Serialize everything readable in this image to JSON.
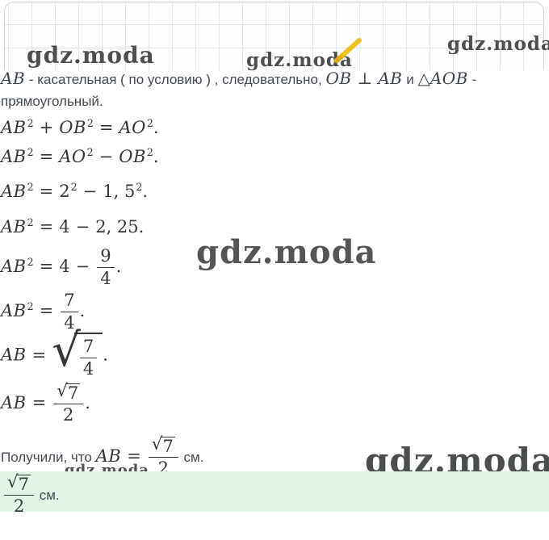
{
  "watermark_text": "gdz.moda",
  "colors": {
    "highlight_green": "#e1f4e6",
    "pencil_yellow": "#eec11d",
    "grid_line": "#e3e6e9",
    "russian_text": "#454b52",
    "math_text": "#33373b"
  },
  "intro": {
    "line1": [
      {
        "t": "v",
        "v": "AB"
      },
      {
        "t": "r",
        "v": " - касательная ( по условию ) , следовательно, "
      },
      {
        "t": "v",
        "v": "OB"
      },
      {
        "t": "o",
        "v": "⊥"
      },
      {
        "t": "v",
        "v": "AB"
      },
      {
        "t": "r",
        "v": " и "
      },
      {
        "t": "n",
        "v": "△"
      },
      {
        "t": "v",
        "v": "AOB"
      },
      {
        "t": "r",
        "v": " -"
      }
    ],
    "line2": "прямоугольный."
  },
  "formulas": [
    {
      "name": "pythagorean",
      "tokens": [
        {
          "t": "v",
          "v": "AB"
        },
        {
          "t": "s",
          "v": "2"
        },
        {
          "t": "o",
          "v": "+"
        },
        {
          "t": "v",
          "v": "OB"
        },
        {
          "t": "s",
          "v": "2"
        },
        {
          "t": "o",
          "v": "="
        },
        {
          "t": "v",
          "v": "AO"
        },
        {
          "t": "s",
          "v": "2"
        },
        {
          "t": "d",
          "v": "."
        }
      ]
    },
    {
      "name": "rearranged",
      "tokens": [
        {
          "t": "v",
          "v": "AB"
        },
        {
          "t": "s",
          "v": "2"
        },
        {
          "t": "o",
          "v": "="
        },
        {
          "t": "v",
          "v": "AO"
        },
        {
          "t": "s",
          "v": "2"
        },
        {
          "t": "o",
          "v": "−"
        },
        {
          "t": "v",
          "v": "OB"
        },
        {
          "t": "s",
          "v": "2"
        },
        {
          "t": "d",
          "v": "."
        }
      ]
    },
    {
      "name": "substituted",
      "tokens": [
        {
          "t": "v",
          "v": "AB"
        },
        {
          "t": "s",
          "v": "2"
        },
        {
          "t": "o",
          "v": "="
        },
        {
          "t": "n",
          "v": "2"
        },
        {
          "t": "s",
          "v": "2"
        },
        {
          "t": "o",
          "v": "−"
        },
        {
          "t": "n",
          "v": "1, 5"
        },
        {
          "t": "s",
          "v": "2"
        },
        {
          "t": "d",
          "v": "."
        }
      ]
    },
    {
      "name": "decimal",
      "tokens": [
        {
          "t": "v",
          "v": "AB"
        },
        {
          "t": "s",
          "v": "2"
        },
        {
          "t": "o",
          "v": "="
        },
        {
          "t": "n",
          "v": "4"
        },
        {
          "t": "o",
          "v": "−"
        },
        {
          "t": "n",
          "v": "2, 25"
        },
        {
          "t": "d",
          "v": "."
        }
      ]
    },
    {
      "name": "fraction-subtract",
      "tokens": [
        {
          "t": "v",
          "v": "AB"
        },
        {
          "t": "s",
          "v": "2"
        },
        {
          "t": "o",
          "v": "="
        },
        {
          "t": "n",
          "v": "4"
        },
        {
          "t": "o",
          "v": "−"
        },
        {
          "t": "f",
          "num": [
            {
              "t": "n",
              "v": "9"
            }
          ],
          "den": [
            {
              "t": "n",
              "v": "4"
            }
          ]
        },
        {
          "t": "d",
          "v": "."
        }
      ]
    },
    {
      "name": "fraction-result",
      "tokens": [
        {
          "t": "v",
          "v": "AB"
        },
        {
          "t": "s",
          "v": "2"
        },
        {
          "t": "o",
          "v": "="
        },
        {
          "t": "f",
          "num": [
            {
              "t": "n",
              "v": "7"
            }
          ],
          "den": [
            {
              "t": "n",
              "v": "4"
            }
          ]
        },
        {
          "t": "d",
          "v": "."
        }
      ]
    },
    {
      "name": "sqrt-of-fraction",
      "tokens": [
        {
          "t": "v",
          "v": "AB"
        },
        {
          "t": "o",
          "v": "="
        },
        {
          "t": "q",
          "size": "lg",
          "c": [
            {
              "t": "f",
              "num": [
                {
                  "t": "n",
                  "v": "7"
                }
              ],
              "den": [
                {
                  "t": "n",
                  "v": "4"
                }
              ]
            }
          ]
        },
        {
          "t": "d",
          "v": "."
        }
      ]
    },
    {
      "name": "simplified",
      "tokens": [
        {
          "t": "v",
          "v": "AB"
        },
        {
          "t": "o",
          "v": "="
        },
        {
          "t": "f",
          "num": [
            {
              "t": "q",
              "size": "sm",
              "c": [
                {
                  "t": "n",
                  "v": "7"
                }
              ]
            }
          ],
          "den": [
            {
              "t": "n",
              "v": "2"
            }
          ]
        },
        {
          "t": "d",
          "v": "."
        }
      ]
    }
  ],
  "result": {
    "tokens": [
      {
        "t": "r",
        "v": "Получили, что "
      },
      {
        "t": "v",
        "v": "AB"
      },
      {
        "t": "o",
        "v": "="
      },
      {
        "t": "f",
        "num": [
          {
            "t": "q",
            "size": "sm",
            "c": [
              {
                "t": "n",
                "v": "7"
              }
            ]
          }
        ],
        "den": [
          {
            "t": "n",
            "v": "2"
          }
        ]
      },
      {
        "t": "r",
        "v": " см."
      }
    ]
  },
  "answer": {
    "tokens": [
      {
        "t": "f",
        "num": [
          {
            "t": "q",
            "size": "sm",
            "c": [
              {
                "t": "n",
                "v": "7"
              }
            ]
          }
        ],
        "den": [
          {
            "t": "n",
            "v": "2"
          }
        ]
      },
      {
        "t": "r",
        "v": " см."
      }
    ]
  }
}
